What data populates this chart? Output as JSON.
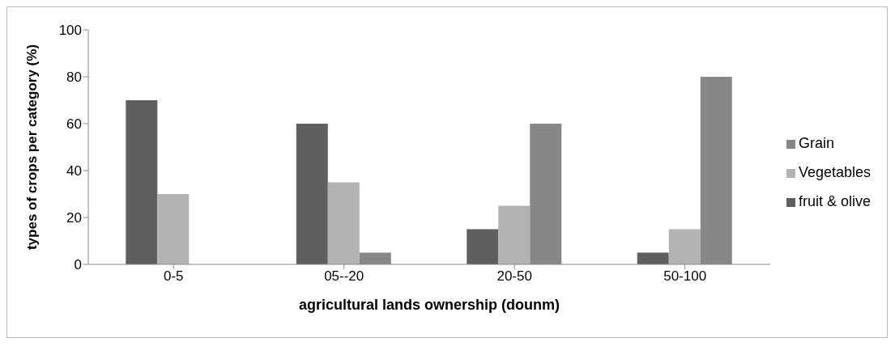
{
  "chart_data": {
    "type": "bar",
    "xlabel": "agricultural lands ownership (dounm)",
    "ylabel": "types of crops per category (%)",
    "categories": [
      "0-5",
      "05--20",
      "20-50",
      "50-100"
    ],
    "series": [
      {
        "name": "fruit & olive",
        "color": "#5f5f5f",
        "values": [
          70,
          60,
          15,
          5
        ]
      },
      {
        "name": "Vegetables",
        "color": "#b3b3b3",
        "values": [
          30,
          35,
          25,
          15
        ]
      },
      {
        "name": "Grain",
        "color": "#878787",
        "values": [
          0,
          5,
          60,
          80
        ]
      }
    ],
    "ylim": [
      0,
      100
    ],
    "yticks": [
      0,
      20,
      40,
      60,
      80,
      100
    ],
    "legend": "right"
  }
}
